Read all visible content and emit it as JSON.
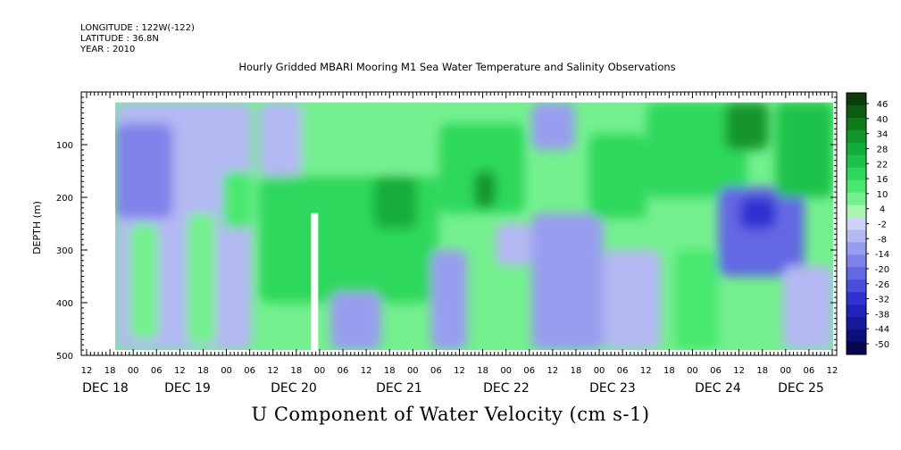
{
  "header": {
    "longitude": "LONGITUDE : 122W(-122)",
    "latitude": "LATITUDE : 36.8N",
    "year": "YEAR : 2010"
  },
  "chart_data": {
    "type": "heatmap",
    "title": "Hourly Gridded MBARI Mooring M1 Sea Water Temperature and Salinity Observations",
    "bottom_title": "U Component of Water Velocity (cm s-1)",
    "ylabel": "DEPTH (m)",
    "ylim": [
      500,
      0
    ],
    "y_ticks": [
      100,
      200,
      300,
      400,
      500
    ],
    "x_hour_ticks": [
      "12",
      "18",
      "00",
      "06",
      "12",
      "18",
      "00",
      "06",
      "12",
      "18",
      "00",
      "06",
      "12",
      "18",
      "00",
      "06",
      "12",
      "18",
      "00",
      "06",
      "12",
      "18",
      "00",
      "06",
      "12",
      "18",
      "00",
      "06",
      "12",
      "18",
      "00",
      "06",
      "12"
    ],
    "day_labels": [
      "DEC 18",
      "DEC 19",
      "DEC 20",
      "DEC 21",
      "DEC 22",
      "DEC 23",
      "DEC 24",
      "DEC 25"
    ],
    "data_depth_range_m": [
      20,
      490
    ],
    "data_time_start": "2010-12-18 18:00",
    "data_time_end": "2010-12-25 12:00",
    "gap": {
      "time": "2010-12-19 21:00",
      "depth_range_m": [
        230,
        490
      ]
    },
    "colorbar": {
      "labels": [
        "46",
        "40",
        "34",
        "28",
        "22",
        "16",
        "10",
        "4",
        "-2",
        "-8",
        "-14",
        "-20",
        "-26",
        "-32",
        "-38",
        "-44",
        "-50"
      ],
      "colors": [
        "#0b3d0b",
        "#0e5a14",
        "#107a1b",
        "#12952a",
        "#14ad3a",
        "#1cc24a",
        "#2dd85c",
        "#4ae870",
        "#74f08e",
        "#a8f5b4",
        "#cfd3f7",
        "#b4b8f3",
        "#999def",
        "#7f82e9",
        "#6468e3",
        "#4a4edc",
        "#2f32d1",
        "#2022b8",
        "#161898",
        "#0d0f78",
        "#06074f"
      ]
    },
    "regions": [
      {
        "t0": 0.0,
        "t1": 0.19,
        "d0": 20,
        "d1": 490,
        "v": -6
      },
      {
        "t0": 0.0,
        "t1": 0.08,
        "d0": 60,
        "d1": 240,
        "v": -14
      },
      {
        "t0": 0.02,
        "t1": 0.06,
        "d0": 250,
        "d1": 470,
        "v": 6
      },
      {
        "t0": 0.1,
        "t1": 0.14,
        "d0": 230,
        "d1": 480,
        "v": 8
      },
      {
        "t0": 0.15,
        "t1": 0.19,
        "d0": 150,
        "d1": 260,
        "v": 12
      },
      {
        "t0": 0.2,
        "t1": 0.26,
        "d0": 20,
        "d1": 160,
        "v": -8
      },
      {
        "t0": 0.2,
        "t1": 0.45,
        "d0": 160,
        "d1": 400,
        "v": 16
      },
      {
        "t0": 0.26,
        "t1": 0.45,
        "d0": 20,
        "d1": 150,
        "v": 8
      },
      {
        "t0": 0.3,
        "t1": 0.37,
        "d0": 380,
        "d1": 490,
        "v": -10
      },
      {
        "t0": 0.36,
        "t1": 0.42,
        "d0": 160,
        "d1": 260,
        "v": 24
      },
      {
        "t0": 0.45,
        "t1": 0.57,
        "d0": 60,
        "d1": 230,
        "v": 18
      },
      {
        "t0": 0.5,
        "t1": 0.53,
        "d0": 150,
        "d1": 220,
        "v": 28
      },
      {
        "t0": 0.44,
        "t1": 0.49,
        "d0": 300,
        "d1": 490,
        "v": -10
      },
      {
        "t0": 0.53,
        "t1": 0.58,
        "d0": 250,
        "d1": 330,
        "v": -6
      },
      {
        "t0": 0.58,
        "t1": 0.64,
        "d0": 20,
        "d1": 110,
        "v": -12
      },
      {
        "t0": 0.58,
        "t1": 0.68,
        "d0": 230,
        "d1": 490,
        "v": -10
      },
      {
        "t0": 0.66,
        "t1": 0.74,
        "d0": 80,
        "d1": 240,
        "v": 18
      },
      {
        "t0": 0.68,
        "t1": 0.76,
        "d0": 300,
        "d1": 490,
        "v": -8
      },
      {
        "t0": 0.74,
        "t1": 0.88,
        "d0": 20,
        "d1": 200,
        "v": 16
      },
      {
        "t0": 0.85,
        "t1": 0.91,
        "d0": 20,
        "d1": 110,
        "v": 32
      },
      {
        "t0": 0.84,
        "t1": 0.96,
        "d0": 180,
        "d1": 350,
        "v": -18
      },
      {
        "t0": 0.87,
        "t1": 0.92,
        "d0": 200,
        "d1": 260,
        "v": -28
      },
      {
        "t0": 0.92,
        "t1": 1.0,
        "d0": 20,
        "d1": 200,
        "v": 20
      },
      {
        "t0": 0.93,
        "t1": 1.0,
        "d0": 330,
        "d1": 490,
        "v": -8
      },
      {
        "t0": 0.78,
        "t1": 0.84,
        "d0": 300,
        "d1": 490,
        "v": 10
      }
    ]
  }
}
